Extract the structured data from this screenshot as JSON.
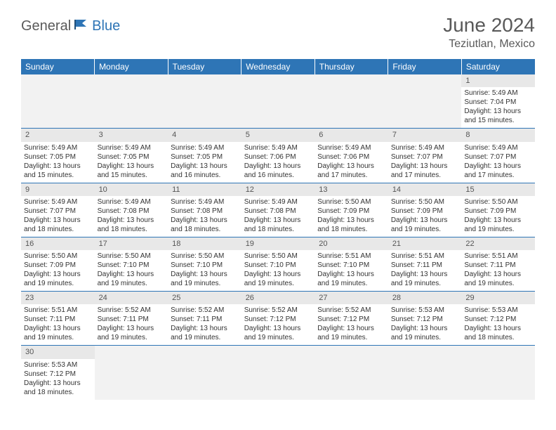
{
  "logo": {
    "part1": "General",
    "part2": "Blue"
  },
  "title": "June 2024",
  "location": "Teziutlan, Mexico",
  "colors": {
    "header_bg": "#2e75b6",
    "header_text": "#ffffff",
    "daynum_bg": "#e8e8e8",
    "empty_bg": "#f2f2f2",
    "border": "#2e75b6",
    "title_color": "#595959",
    "body_text": "#333333"
  },
  "weekdays": [
    "Sunday",
    "Monday",
    "Tuesday",
    "Wednesday",
    "Thursday",
    "Friday",
    "Saturday"
  ],
  "weeks": [
    [
      null,
      null,
      null,
      null,
      null,
      null,
      {
        "day": "1",
        "sunrise": "Sunrise: 5:49 AM",
        "sunset": "Sunset: 7:04 PM",
        "daylight1": "Daylight: 13 hours",
        "daylight2": "and 15 minutes."
      }
    ],
    [
      {
        "day": "2",
        "sunrise": "Sunrise: 5:49 AM",
        "sunset": "Sunset: 7:05 PM",
        "daylight1": "Daylight: 13 hours",
        "daylight2": "and 15 minutes."
      },
      {
        "day": "3",
        "sunrise": "Sunrise: 5:49 AM",
        "sunset": "Sunset: 7:05 PM",
        "daylight1": "Daylight: 13 hours",
        "daylight2": "and 15 minutes."
      },
      {
        "day": "4",
        "sunrise": "Sunrise: 5:49 AM",
        "sunset": "Sunset: 7:05 PM",
        "daylight1": "Daylight: 13 hours",
        "daylight2": "and 16 minutes."
      },
      {
        "day": "5",
        "sunrise": "Sunrise: 5:49 AM",
        "sunset": "Sunset: 7:06 PM",
        "daylight1": "Daylight: 13 hours",
        "daylight2": "and 16 minutes."
      },
      {
        "day": "6",
        "sunrise": "Sunrise: 5:49 AM",
        "sunset": "Sunset: 7:06 PM",
        "daylight1": "Daylight: 13 hours",
        "daylight2": "and 17 minutes."
      },
      {
        "day": "7",
        "sunrise": "Sunrise: 5:49 AM",
        "sunset": "Sunset: 7:07 PM",
        "daylight1": "Daylight: 13 hours",
        "daylight2": "and 17 minutes."
      },
      {
        "day": "8",
        "sunrise": "Sunrise: 5:49 AM",
        "sunset": "Sunset: 7:07 PM",
        "daylight1": "Daylight: 13 hours",
        "daylight2": "and 17 minutes."
      }
    ],
    [
      {
        "day": "9",
        "sunrise": "Sunrise: 5:49 AM",
        "sunset": "Sunset: 7:07 PM",
        "daylight1": "Daylight: 13 hours",
        "daylight2": "and 18 minutes."
      },
      {
        "day": "10",
        "sunrise": "Sunrise: 5:49 AM",
        "sunset": "Sunset: 7:08 PM",
        "daylight1": "Daylight: 13 hours",
        "daylight2": "and 18 minutes."
      },
      {
        "day": "11",
        "sunrise": "Sunrise: 5:49 AM",
        "sunset": "Sunset: 7:08 PM",
        "daylight1": "Daylight: 13 hours",
        "daylight2": "and 18 minutes."
      },
      {
        "day": "12",
        "sunrise": "Sunrise: 5:49 AM",
        "sunset": "Sunset: 7:08 PM",
        "daylight1": "Daylight: 13 hours",
        "daylight2": "and 18 minutes."
      },
      {
        "day": "13",
        "sunrise": "Sunrise: 5:50 AM",
        "sunset": "Sunset: 7:09 PM",
        "daylight1": "Daylight: 13 hours",
        "daylight2": "and 18 minutes."
      },
      {
        "day": "14",
        "sunrise": "Sunrise: 5:50 AM",
        "sunset": "Sunset: 7:09 PM",
        "daylight1": "Daylight: 13 hours",
        "daylight2": "and 19 minutes."
      },
      {
        "day": "15",
        "sunrise": "Sunrise: 5:50 AM",
        "sunset": "Sunset: 7:09 PM",
        "daylight1": "Daylight: 13 hours",
        "daylight2": "and 19 minutes."
      }
    ],
    [
      {
        "day": "16",
        "sunrise": "Sunrise: 5:50 AM",
        "sunset": "Sunset: 7:09 PM",
        "daylight1": "Daylight: 13 hours",
        "daylight2": "and 19 minutes."
      },
      {
        "day": "17",
        "sunrise": "Sunrise: 5:50 AM",
        "sunset": "Sunset: 7:10 PM",
        "daylight1": "Daylight: 13 hours",
        "daylight2": "and 19 minutes."
      },
      {
        "day": "18",
        "sunrise": "Sunrise: 5:50 AM",
        "sunset": "Sunset: 7:10 PM",
        "daylight1": "Daylight: 13 hours",
        "daylight2": "and 19 minutes."
      },
      {
        "day": "19",
        "sunrise": "Sunrise: 5:50 AM",
        "sunset": "Sunset: 7:10 PM",
        "daylight1": "Daylight: 13 hours",
        "daylight2": "and 19 minutes."
      },
      {
        "day": "20",
        "sunrise": "Sunrise: 5:51 AM",
        "sunset": "Sunset: 7:10 PM",
        "daylight1": "Daylight: 13 hours",
        "daylight2": "and 19 minutes."
      },
      {
        "day": "21",
        "sunrise": "Sunrise: 5:51 AM",
        "sunset": "Sunset: 7:11 PM",
        "daylight1": "Daylight: 13 hours",
        "daylight2": "and 19 minutes."
      },
      {
        "day": "22",
        "sunrise": "Sunrise: 5:51 AM",
        "sunset": "Sunset: 7:11 PM",
        "daylight1": "Daylight: 13 hours",
        "daylight2": "and 19 minutes."
      }
    ],
    [
      {
        "day": "23",
        "sunrise": "Sunrise: 5:51 AM",
        "sunset": "Sunset: 7:11 PM",
        "daylight1": "Daylight: 13 hours",
        "daylight2": "and 19 minutes."
      },
      {
        "day": "24",
        "sunrise": "Sunrise: 5:52 AM",
        "sunset": "Sunset: 7:11 PM",
        "daylight1": "Daylight: 13 hours",
        "daylight2": "and 19 minutes."
      },
      {
        "day": "25",
        "sunrise": "Sunrise: 5:52 AM",
        "sunset": "Sunset: 7:11 PM",
        "daylight1": "Daylight: 13 hours",
        "daylight2": "and 19 minutes."
      },
      {
        "day": "26",
        "sunrise": "Sunrise: 5:52 AM",
        "sunset": "Sunset: 7:12 PM",
        "daylight1": "Daylight: 13 hours",
        "daylight2": "and 19 minutes."
      },
      {
        "day": "27",
        "sunrise": "Sunrise: 5:52 AM",
        "sunset": "Sunset: 7:12 PM",
        "daylight1": "Daylight: 13 hours",
        "daylight2": "and 19 minutes."
      },
      {
        "day": "28",
        "sunrise": "Sunrise: 5:53 AM",
        "sunset": "Sunset: 7:12 PM",
        "daylight1": "Daylight: 13 hours",
        "daylight2": "and 19 minutes."
      },
      {
        "day": "29",
        "sunrise": "Sunrise: 5:53 AM",
        "sunset": "Sunset: 7:12 PM",
        "daylight1": "Daylight: 13 hours",
        "daylight2": "and 18 minutes."
      }
    ],
    [
      {
        "day": "30",
        "sunrise": "Sunrise: 5:53 AM",
        "sunset": "Sunset: 7:12 PM",
        "daylight1": "Daylight: 13 hours",
        "daylight2": "and 18 minutes."
      },
      null,
      null,
      null,
      null,
      null,
      null
    ]
  ]
}
